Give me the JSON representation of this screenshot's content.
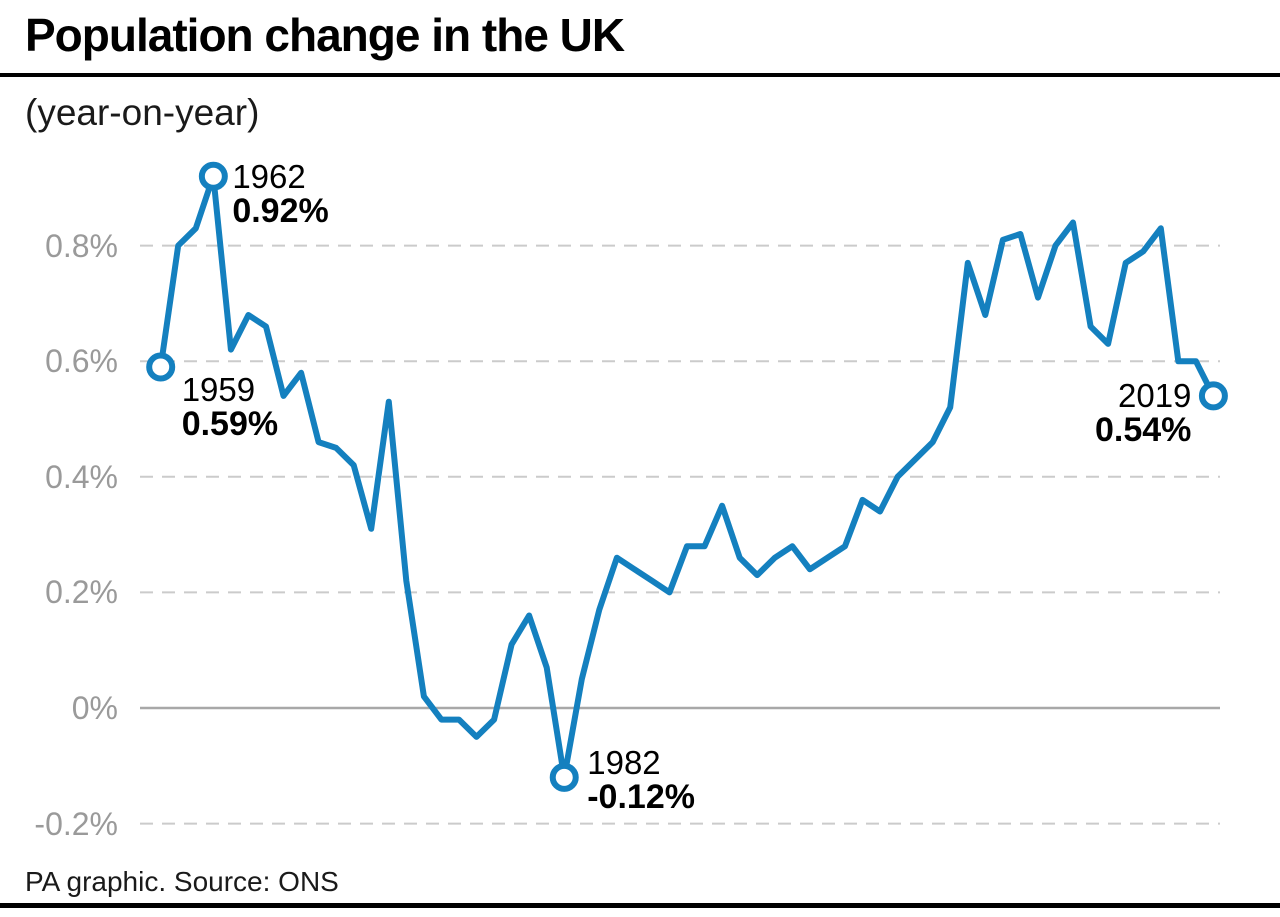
{
  "header": {
    "title": "Population change in the UK",
    "subtitle": "(year-on-year)"
  },
  "footer": {
    "credit": "PA graphic. Source: ONS"
  },
  "chart_data": {
    "type": "line",
    "title": "Population change in the UK",
    "subtitle": "(year-on-year)",
    "series_name": "UK population change year-on-year (%)",
    "x": [
      1959,
      1960,
      1961,
      1962,
      1963,
      1964,
      1965,
      1966,
      1967,
      1968,
      1969,
      1970,
      1971,
      1972,
      1973,
      1974,
      1975,
      1976,
      1977,
      1978,
      1979,
      1980,
      1981,
      1982,
      1983,
      1984,
      1985,
      1986,
      1987,
      1988,
      1989,
      1990,
      1991,
      1992,
      1993,
      1994,
      1995,
      1996,
      1997,
      1998,
      1999,
      2000,
      2001,
      2002,
      2003,
      2004,
      2005,
      2006,
      2007,
      2008,
      2009,
      2010,
      2011,
      2012,
      2013,
      2014,
      2015,
      2016,
      2017,
      2018,
      2019
    ],
    "values": [
      0.59,
      0.8,
      0.83,
      0.92,
      0.62,
      0.68,
      0.66,
      0.54,
      0.58,
      0.46,
      0.45,
      0.42,
      0.31,
      0.53,
      0.22,
      0.02,
      -0.02,
      -0.02,
      -0.05,
      -0.02,
      0.11,
      0.16,
      0.07,
      -0.12,
      0.05,
      0.17,
      0.26,
      0.24,
      0.22,
      0.2,
      0.28,
      0.28,
      0.35,
      0.26,
      0.23,
      0.26,
      0.28,
      0.24,
      0.26,
      0.28,
      0.36,
      0.34,
      0.4,
      0.43,
      0.46,
      0.52,
      0.77,
      0.68,
      0.81,
      0.82,
      0.71,
      0.8,
      0.84,
      0.66,
      0.63,
      0.77,
      0.79,
      0.83,
      0.6,
      0.6,
      0.54
    ],
    "unit": "%",
    "xlim": [
      1959,
      2019
    ],
    "ylim": [
      -0.3,
      1.0
    ],
    "grid": "horizontal dashed, solid zero line",
    "legend": "none",
    "line_color": "#1480bf",
    "gridline_color": "#cbcbcb",
    "zero_line_color": "#a8a8a8",
    "tick_label_color": "#9a9a9a",
    "yticks": [
      {
        "value": 0.8,
        "label": "0.8%"
      },
      {
        "value": 0.6,
        "label": "0.6%"
      },
      {
        "value": 0.4,
        "label": "0.4%"
      },
      {
        "value": 0.2,
        "label": "0.2%"
      },
      {
        "value": 0.0,
        "label": "0%"
      },
      {
        "value": -0.2,
        "label": "-0.2%"
      }
    ],
    "annotations": [
      {
        "year": 1959,
        "text_year": "1959",
        "text_value": "0.59%"
      },
      {
        "year": 1962,
        "text_year": "1962",
        "text_value": "0.92%"
      },
      {
        "year": 1982,
        "text_year": "1982",
        "text_value": "-0.12%"
      },
      {
        "year": 2019,
        "text_year": "2019",
        "text_value": "0.54%"
      }
    ],
    "source": "PA graphic. Source: ONS"
  }
}
